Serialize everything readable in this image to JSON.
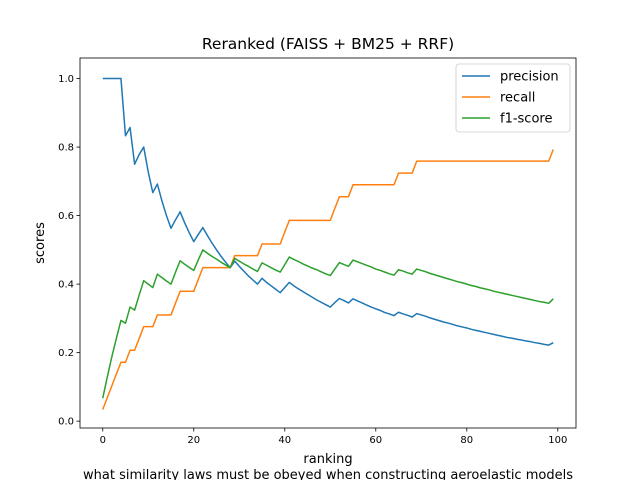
{
  "chart_data": {
    "type": "line",
    "title": "Reranked (FAISS + BM25 + RRF)",
    "xlabel": "ranking",
    "ylabel": "scores",
    "caption": "what similarity laws must be obeyed when constructing aeroelastic models",
    "xlim": [
      -5,
      104
    ],
    "ylim": [
      -0.02,
      1.06
    ],
    "xticks": [
      0,
      20,
      40,
      60,
      80,
      100
    ],
    "xtick_labels": [
      "0",
      "20",
      "40",
      "60",
      "80",
      "100"
    ],
    "yticks": [
      0.0,
      0.2,
      0.4,
      0.6,
      0.8,
      1.0
    ],
    "ytick_labels": [
      "0.0",
      "0.2",
      "0.4",
      "0.6",
      "0.8",
      "1.0"
    ],
    "grid": false,
    "legend_position": "top-right",
    "series": [
      {
        "name": "precision",
        "color": "#1f77b4",
        "x": [
          0,
          1,
          2,
          3,
          4,
          5,
          6,
          7,
          8,
          9,
          10,
          11,
          12,
          13,
          14,
          15,
          16,
          17,
          18,
          19,
          20,
          21,
          22,
          23,
          24,
          25,
          26,
          27,
          28,
          29,
          30,
          31,
          32,
          33,
          34,
          35,
          36,
          37,
          38,
          39,
          40,
          41,
          42,
          43,
          44,
          45,
          46,
          47,
          48,
          49,
          50,
          51,
          52,
          53,
          54,
          55,
          56,
          57,
          58,
          59,
          60,
          61,
          62,
          63,
          64,
          65,
          66,
          67,
          68,
          69,
          70,
          71,
          72,
          73,
          74,
          75,
          76,
          77,
          78,
          79,
          80,
          81,
          82,
          83,
          84,
          85,
          86,
          87,
          88,
          89,
          90,
          91,
          92,
          93,
          94,
          95,
          96,
          97,
          98,
          99
        ],
        "values": [
          1.0,
          1.0,
          1.0,
          1.0,
          1.0,
          0.833,
          0.857,
          0.75,
          0.778,
          0.8,
          0.727,
          0.667,
          0.692,
          0.643,
          0.6,
          0.563,
          0.588,
          0.611,
          0.579,
          0.55,
          0.524,
          0.545,
          0.565,
          0.542,
          0.52,
          0.5,
          0.481,
          0.464,
          0.448,
          0.467,
          0.452,
          0.438,
          0.424,
          0.412,
          0.4,
          0.417,
          0.405,
          0.395,
          0.385,
          0.375,
          0.39,
          0.405,
          0.395,
          0.386,
          0.378,
          0.37,
          0.362,
          0.354,
          0.347,
          0.34,
          0.333,
          0.346,
          0.358,
          0.352,
          0.345,
          0.357,
          0.351,
          0.345,
          0.339,
          0.333,
          0.328,
          0.323,
          0.317,
          0.313,
          0.308,
          0.318,
          0.313,
          0.309,
          0.304,
          0.314,
          0.31,
          0.306,
          0.301,
          0.297,
          0.293,
          0.289,
          0.286,
          0.282,
          0.278,
          0.275,
          0.272,
          0.268,
          0.265,
          0.262,
          0.259,
          0.256,
          0.253,
          0.25,
          0.247,
          0.244,
          0.242,
          0.239,
          0.237,
          0.234,
          0.232,
          0.229,
          0.227,
          0.224,
          0.222,
          0.229
        ]
      },
      {
        "name": "recall",
        "color": "#ff7f0e",
        "x": [
          0,
          1,
          2,
          3,
          4,
          5,
          6,
          7,
          8,
          9,
          10,
          11,
          12,
          13,
          14,
          15,
          16,
          17,
          18,
          19,
          20,
          21,
          22,
          23,
          24,
          25,
          26,
          27,
          28,
          29,
          30,
          31,
          32,
          33,
          34,
          35,
          36,
          37,
          38,
          39,
          40,
          41,
          42,
          43,
          44,
          45,
          46,
          47,
          48,
          49,
          50,
          51,
          52,
          53,
          54,
          55,
          56,
          57,
          58,
          59,
          60,
          61,
          62,
          63,
          64,
          65,
          66,
          67,
          68,
          69,
          70,
          71,
          72,
          73,
          74,
          75,
          76,
          77,
          78,
          79,
          80,
          81,
          82,
          83,
          84,
          85,
          86,
          87,
          88,
          89,
          90,
          91,
          92,
          93,
          94,
          95,
          96,
          97,
          98,
          99
        ],
        "values": [
          0.034,
          0.069,
          0.103,
          0.138,
          0.172,
          0.172,
          0.207,
          0.207,
          0.241,
          0.276,
          0.276,
          0.276,
          0.31,
          0.31,
          0.31,
          0.31,
          0.345,
          0.379,
          0.379,
          0.379,
          0.379,
          0.414,
          0.448,
          0.448,
          0.448,
          0.448,
          0.448,
          0.448,
          0.448,
          0.483,
          0.483,
          0.483,
          0.483,
          0.483,
          0.483,
          0.517,
          0.517,
          0.517,
          0.517,
          0.517,
          0.552,
          0.586,
          0.586,
          0.586,
          0.586,
          0.586,
          0.586,
          0.586,
          0.586,
          0.586,
          0.586,
          0.621,
          0.655,
          0.655,
          0.655,
          0.69,
          0.69,
          0.69,
          0.69,
          0.69,
          0.69,
          0.69,
          0.69,
          0.69,
          0.69,
          0.724,
          0.724,
          0.724,
          0.724,
          0.759,
          0.759,
          0.759,
          0.759,
          0.759,
          0.759,
          0.759,
          0.759,
          0.759,
          0.759,
          0.759,
          0.759,
          0.759,
          0.759,
          0.759,
          0.759,
          0.759,
          0.759,
          0.759,
          0.759,
          0.759,
          0.759,
          0.759,
          0.759,
          0.759,
          0.759,
          0.759,
          0.759,
          0.759,
          0.759,
          0.793
        ]
      },
      {
        "name": "f1-score",
        "color": "#2ca02c",
        "x": [
          0,
          1,
          2,
          3,
          4,
          5,
          6,
          7,
          8,
          9,
          10,
          11,
          12,
          13,
          14,
          15,
          16,
          17,
          18,
          19,
          20,
          21,
          22,
          23,
          24,
          25,
          26,
          27,
          28,
          29,
          30,
          31,
          32,
          33,
          34,
          35,
          36,
          37,
          38,
          39,
          40,
          41,
          42,
          43,
          44,
          45,
          46,
          47,
          48,
          49,
          50,
          51,
          52,
          53,
          54,
          55,
          56,
          57,
          58,
          59,
          60,
          61,
          62,
          63,
          64,
          65,
          66,
          67,
          68,
          69,
          70,
          71,
          72,
          73,
          74,
          75,
          76,
          77,
          78,
          79,
          80,
          81,
          82,
          83,
          84,
          85,
          86,
          87,
          88,
          89,
          90,
          91,
          92,
          93,
          94,
          95,
          96,
          97,
          98,
          99
        ],
        "values": [
          0.067,
          0.129,
          0.188,
          0.242,
          0.294,
          0.286,
          0.333,
          0.324,
          0.368,
          0.41,
          0.4,
          0.39,
          0.429,
          0.419,
          0.409,
          0.4,
          0.435,
          0.468,
          0.458,
          0.449,
          0.44,
          0.471,
          0.5,
          0.49,
          0.481,
          0.473,
          0.464,
          0.456,
          0.448,
          0.475,
          0.467,
          0.459,
          0.452,
          0.444,
          0.437,
          0.462,
          0.455,
          0.448,
          0.441,
          0.435,
          0.457,
          0.479,
          0.472,
          0.466,
          0.459,
          0.453,
          0.447,
          0.442,
          0.436,
          0.43,
          0.425,
          0.444,
          0.463,
          0.457,
          0.452,
          0.47,
          0.465,
          0.46,
          0.455,
          0.45,
          0.444,
          0.44,
          0.435,
          0.43,
          0.426,
          0.442,
          0.438,
          0.433,
          0.429,
          0.444,
          0.44,
          0.436,
          0.431,
          0.427,
          0.423,
          0.419,
          0.415,
          0.411,
          0.407,
          0.404,
          0.4,
          0.396,
          0.393,
          0.389,
          0.386,
          0.383,
          0.379,
          0.376,
          0.373,
          0.37,
          0.367,
          0.364,
          0.361,
          0.358,
          0.355,
          0.352,
          0.349,
          0.347,
          0.344,
          0.357
        ]
      }
    ]
  }
}
